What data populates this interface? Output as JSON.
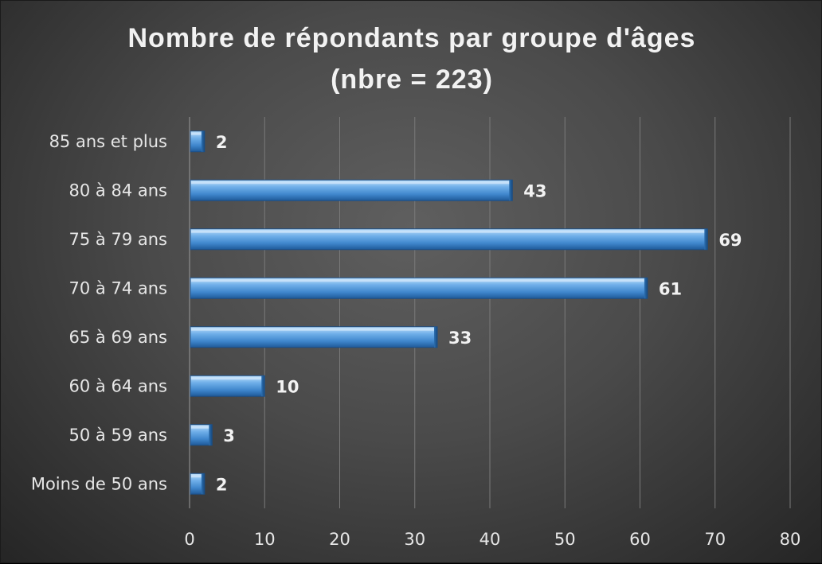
{
  "chart_data": {
    "type": "bar",
    "orientation": "horizontal",
    "title_line1": "Nombre de répondants par groupe d'âges",
    "title_line2": "(nbre = 223)",
    "categories": [
      "85 ans et plus",
      "80 à 84 ans",
      "75 à 79 ans",
      "70 à 74 ans",
      "65 à 69 ans",
      "60 à 64 ans",
      "50 à 59 ans",
      "Moins de 50 ans"
    ],
    "values": [
      2,
      43,
      69,
      61,
      33,
      10,
      3,
      2
    ],
    "xlim": [
      0,
      80
    ],
    "xticks": [
      "0",
      "10",
      "20",
      "30",
      "40",
      "50",
      "60",
      "70",
      "80"
    ],
    "grid": true,
    "bar_color": "#5b9bd5"
  }
}
